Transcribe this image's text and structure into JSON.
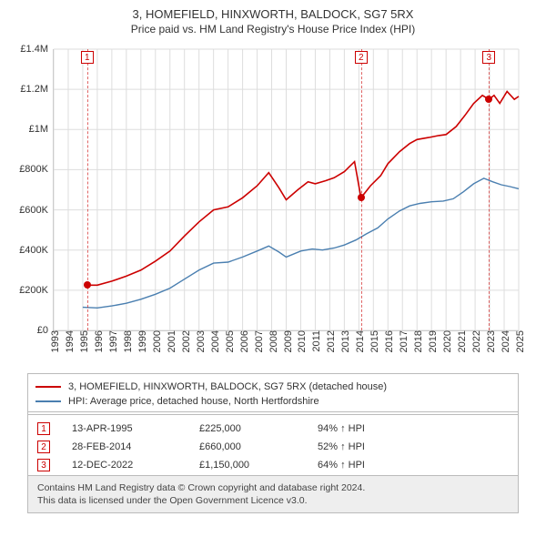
{
  "title": "3, HOMEFIELD, HINXWORTH, BALDOCK, SG7 5RX",
  "subtitle": "Price paid vs. HM Land Registry's House Price Index (HPI)",
  "chart": {
    "type": "line",
    "background_color": "#ffffff",
    "grid_color": "#dddddd",
    "axis_color": "#bbbbbb",
    "x": {
      "min": 1993,
      "max": 2025,
      "tick_step": 1
    },
    "y": {
      "min": 0,
      "max": 1400000,
      "tick_step": 200000
    },
    "x_tick_labels": [
      "1993",
      "1994",
      "1995",
      "1996",
      "1997",
      "1998",
      "1999",
      "2000",
      "2001",
      "2002",
      "2003",
      "2004",
      "2005",
      "2006",
      "2007",
      "2008",
      "2009",
      "2010",
      "2011",
      "2012",
      "2013",
      "2014",
      "2015",
      "2016",
      "2017",
      "2018",
      "2019",
      "2020",
      "2021",
      "2022",
      "2023",
      "2024",
      "2025"
    ],
    "y_tick_labels": [
      "£0",
      "£200K",
      "£400K",
      "£600K",
      "£800K",
      "£1M",
      "£1.2M",
      "£1.4M"
    ],
    "series": [
      {
        "name": "3, HOMEFIELD, HINXWORTH, BALDOCK, SG7 5RX (detached house)",
        "color": "#cc0000",
        "line_width": 1.6,
        "points": [
          [
            1995.3,
            225000
          ],
          [
            1996,
            225000
          ],
          [
            1997,
            245000
          ],
          [
            1998,
            270000
          ],
          [
            1999,
            300000
          ],
          [
            2000,
            345000
          ],
          [
            2001,
            395000
          ],
          [
            2002,
            470000
          ],
          [
            2003,
            540000
          ],
          [
            2004,
            600000
          ],
          [
            2005,
            615000
          ],
          [
            2006,
            660000
          ],
          [
            2007,
            720000
          ],
          [
            2007.8,
            785000
          ],
          [
            2008.5,
            710000
          ],
          [
            2009,
            650000
          ],
          [
            2009.8,
            700000
          ],
          [
            2010.5,
            740000
          ],
          [
            2011,
            730000
          ],
          [
            2011.7,
            745000
          ],
          [
            2012.3,
            760000
          ],
          [
            2013,
            790000
          ],
          [
            2013.7,
            840000
          ],
          [
            2014.15,
            660000
          ],
          [
            2014.8,
            720000
          ],
          [
            2015.5,
            770000
          ],
          [
            2016,
            830000
          ],
          [
            2016.8,
            890000
          ],
          [
            2017.5,
            930000
          ],
          [
            2018,
            950000
          ],
          [
            2018.8,
            960000
          ],
          [
            2019.5,
            970000
          ],
          [
            2020,
            975000
          ],
          [
            2020.7,
            1015000
          ],
          [
            2021.3,
            1070000
          ],
          [
            2021.9,
            1130000
          ],
          [
            2022.5,
            1170000
          ],
          [
            2022.95,
            1150000
          ],
          [
            2023.3,
            1170000
          ],
          [
            2023.7,
            1130000
          ],
          [
            2024.2,
            1190000
          ],
          [
            2024.7,
            1150000
          ],
          [
            2025,
            1165000
          ]
        ]
      },
      {
        "name": "HPI: Average price, detached house, North Hertfordshire",
        "color": "#4a7fb0",
        "line_width": 1.4,
        "points": [
          [
            1995,
            115000
          ],
          [
            1996,
            112000
          ],
          [
            1997,
            122000
          ],
          [
            1998,
            135000
          ],
          [
            1999,
            155000
          ],
          [
            2000,
            180000
          ],
          [
            2001,
            210000
          ],
          [
            2002,
            255000
          ],
          [
            2003,
            300000
          ],
          [
            2004,
            335000
          ],
          [
            2005,
            340000
          ],
          [
            2006,
            365000
          ],
          [
            2007,
            395000
          ],
          [
            2007.8,
            420000
          ],
          [
            2008.5,
            390000
          ],
          [
            2009,
            365000
          ],
          [
            2010,
            395000
          ],
          [
            2010.8,
            405000
          ],
          [
            2011.5,
            400000
          ],
          [
            2012.3,
            410000
          ],
          [
            2013,
            425000
          ],
          [
            2013.8,
            450000
          ],
          [
            2014.5,
            480000
          ],
          [
            2015.3,
            510000
          ],
          [
            2016,
            555000
          ],
          [
            2016.8,
            595000
          ],
          [
            2017.5,
            620000
          ],
          [
            2018.2,
            632000
          ],
          [
            2019,
            640000
          ],
          [
            2019.8,
            644000
          ],
          [
            2020.5,
            655000
          ],
          [
            2021.2,
            690000
          ],
          [
            2021.9,
            730000
          ],
          [
            2022.6,
            757000
          ],
          [
            2023.2,
            740000
          ],
          [
            2023.8,
            725000
          ],
          [
            2024.4,
            716000
          ],
          [
            2025,
            705000
          ]
        ]
      }
    ],
    "marker_color": "#cc0000",
    "sale_markers": [
      {
        "n": "1",
        "year": 1995.3,
        "value": 225000
      },
      {
        "n": "2",
        "year": 2014.15,
        "value": 660000
      },
      {
        "n": "3",
        "year": 2022.95,
        "value": 1150000
      }
    ]
  },
  "legend": {
    "items": [
      {
        "color": "#cc0000",
        "label": "3, HOMEFIELD, HINXWORTH, BALDOCK, SG7 5RX (detached house)"
      },
      {
        "color": "#4a7fb0",
        "label": "HPI: Average price, detached house, North Hertfordshire"
      }
    ]
  },
  "sales": [
    {
      "n": "1",
      "date": "13-APR-1995",
      "price": "£225,000",
      "diff": "94% ↑ HPI"
    },
    {
      "n": "2",
      "date": "28-FEB-2014",
      "price": "£660,000",
      "diff": "52% ↑ HPI"
    },
    {
      "n": "3",
      "date": "12-DEC-2022",
      "price": "£1,150,000",
      "diff": "64% ↑ HPI"
    }
  ],
  "footer_line1": "Contains HM Land Registry data © Crown copyright and database right 2024.",
  "footer_line2": "This data is licensed under the Open Government Licence v3.0."
}
